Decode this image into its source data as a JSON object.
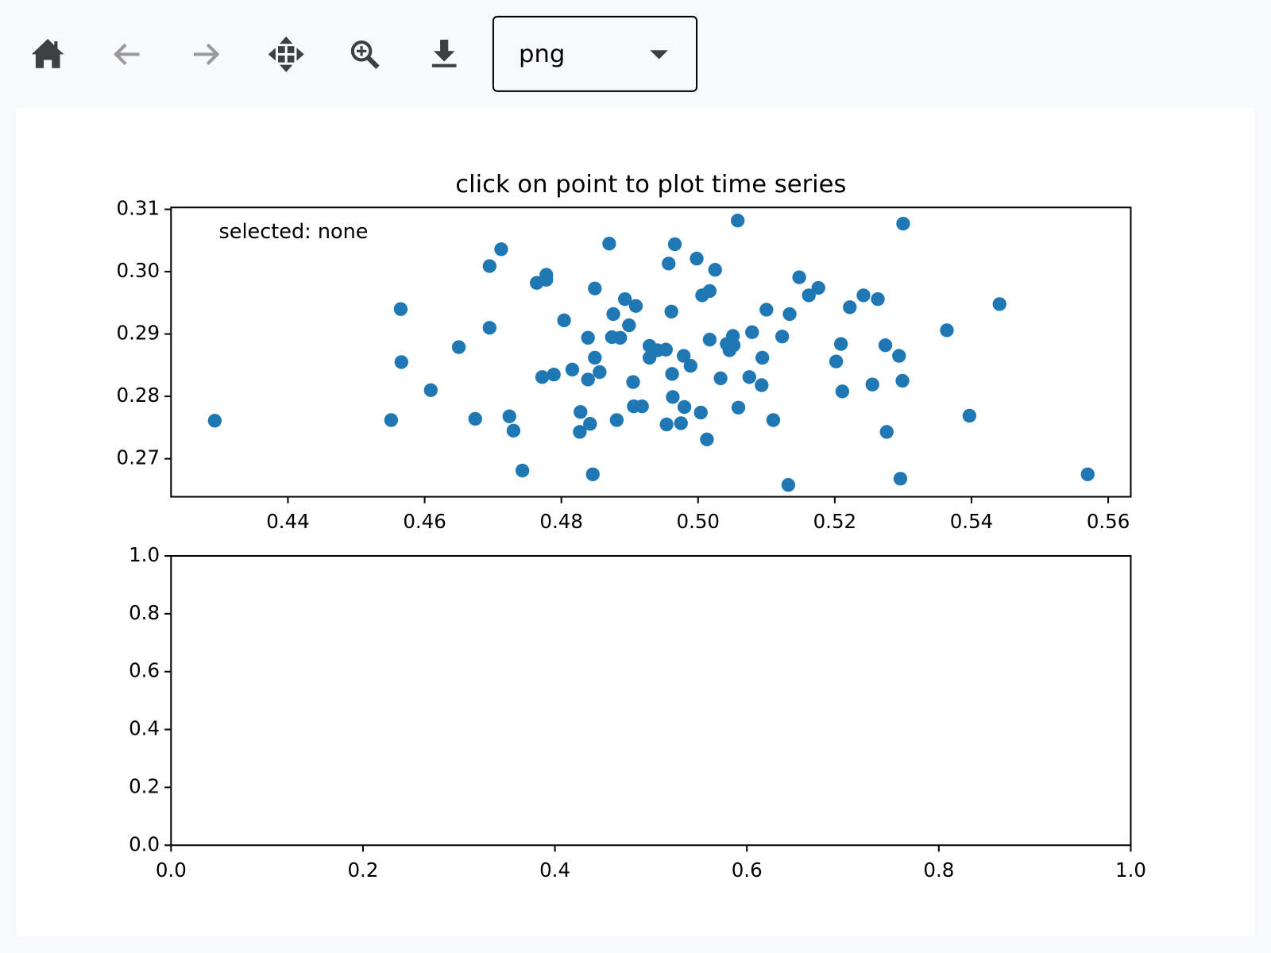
{
  "toolbar": {
    "format": "png"
  },
  "chart_data": [
    {
      "type": "scatter",
      "title": "click on point to plot time series",
      "annotation": "selected: none",
      "color": "#1f77b4",
      "xlim": [
        0.4229,
        0.5633
      ],
      "ylim": [
        0.2639,
        0.3103
      ],
      "xticks": [
        0.44,
        0.46,
        0.48,
        {
          "value": 0.5,
          "label": "0.50"
        },
        0.52,
        0.54,
        0.56
      ],
      "yticks": [
        0.27,
        {
          "value": 0.28,
          "label": "0.28"
        },
        0.29,
        {
          "value": 0.3,
          "label": "0.30"
        },
        0.31
      ],
      "series": [
        {
          "x": [
            0.4293,
            0.4551,
            0.4565,
            0.4566,
            0.4609,
            0.465,
            0.4674,
            0.4695,
            0.4695,
            0.4712,
            0.4724,
            0.473,
            0.4743,
            0.4764,
            0.4778,
            0.4778,
            0.4772,
            0.4789,
            0.4804,
            0.4816,
            0.4828,
            0.4827,
            0.4839,
            0.4839,
            0.4842,
            0.4846,
            0.4849,
            0.4849,
            0.4856,
            0.487,
            0.4876,
            0.4874,
            0.4881,
            0.4886,
            0.4893,
            0.4899,
            0.4909,
            0.4905,
            0.4906,
            0.4918,
            0.4929,
            0.4929,
            0.4941,
            0.4953,
            0.4954,
            0.4957,
            0.4961,
            0.4962,
            0.4963,
            0.4966,
            0.4975,
            0.4979,
            0.498,
            0.4989,
            0.4998,
            0.5004,
            0.5006,
            0.5013,
            0.5017,
            0.5017,
            0.5025,
            0.5033,
            0.5042,
            0.5046,
            0.5051,
            0.5052,
            0.5058,
            0.5059,
            0.5075,
            0.5079,
            0.5093,
            0.5094,
            0.51,
            0.511,
            0.5123,
            0.5132,
            0.5134,
            0.5148,
            0.5162,
            0.5176,
            0.5202,
            0.5209,
            0.5211,
            0.5222,
            0.5242,
            0.5255,
            0.5263,
            0.5274,
            0.5276,
            0.5294,
            0.5296,
            0.5299,
            0.53,
            0.5364,
            0.5397,
            0.5441,
            0.557
          ],
          "values": [
            0.2761,
            0.2762,
            0.294,
            0.2855,
            0.281,
            0.2879,
            0.2764,
            0.3009,
            0.291,
            0.3036,
            0.2768,
            0.2745,
            0.2681,
            0.2982,
            0.2995,
            0.2987,
            0.2831,
            0.2835,
            0.2922,
            0.2843,
            0.2775,
            0.2743,
            0.2894,
            0.2827,
            0.2756,
            0.2675,
            0.2973,
            0.2862,
            0.2839,
            0.3045,
            0.2932,
            0.2895,
            0.2762,
            0.2894,
            0.2956,
            0.2914,
            0.2945,
            0.2823,
            0.2784,
            0.2784,
            0.2881,
            0.2862,
            0.2874,
            0.2875,
            0.2755,
            0.3013,
            0.2936,
            0.2836,
            0.2799,
            0.3044,
            0.2757,
            0.2865,
            0.2783,
            0.2849,
            0.3021,
            0.2774,
            0.2962,
            0.2731,
            0.2969,
            0.2891,
            0.3003,
            0.2829,
            0.2884,
            0.2874,
            0.2897,
            0.2882,
            0.3082,
            0.2782,
            0.2831,
            0.2903,
            0.2818,
            0.2862,
            0.2939,
            0.2762,
            0.2896,
            0.2658,
            0.2932,
            0.2991,
            0.2962,
            0.2974,
            0.2856,
            0.2884,
            0.2808,
            0.2943,
            0.2962,
            0.2819,
            0.2956,
            0.2882,
            0.2743,
            0.2865,
            0.2668,
            0.2825,
            0.3077,
            0.2906,
            0.2769,
            0.2948,
            0.2675
          ]
        }
      ]
    },
    {
      "type": "line",
      "xlim": [
        0,
        1
      ],
      "ylim": [
        0,
        1
      ],
      "xticks": [
        {
          "value": 0,
          "label": "0.0"
        },
        0.2,
        0.4,
        0.6,
        0.8,
        {
          "value": 1,
          "label": "1.0"
        }
      ],
      "yticks": [
        {
          "value": 0,
          "label": "0.0"
        },
        0.2,
        0.4,
        0.6,
        0.8,
        {
          "value": 1,
          "label": "1.0"
        }
      ],
      "series": []
    }
  ]
}
